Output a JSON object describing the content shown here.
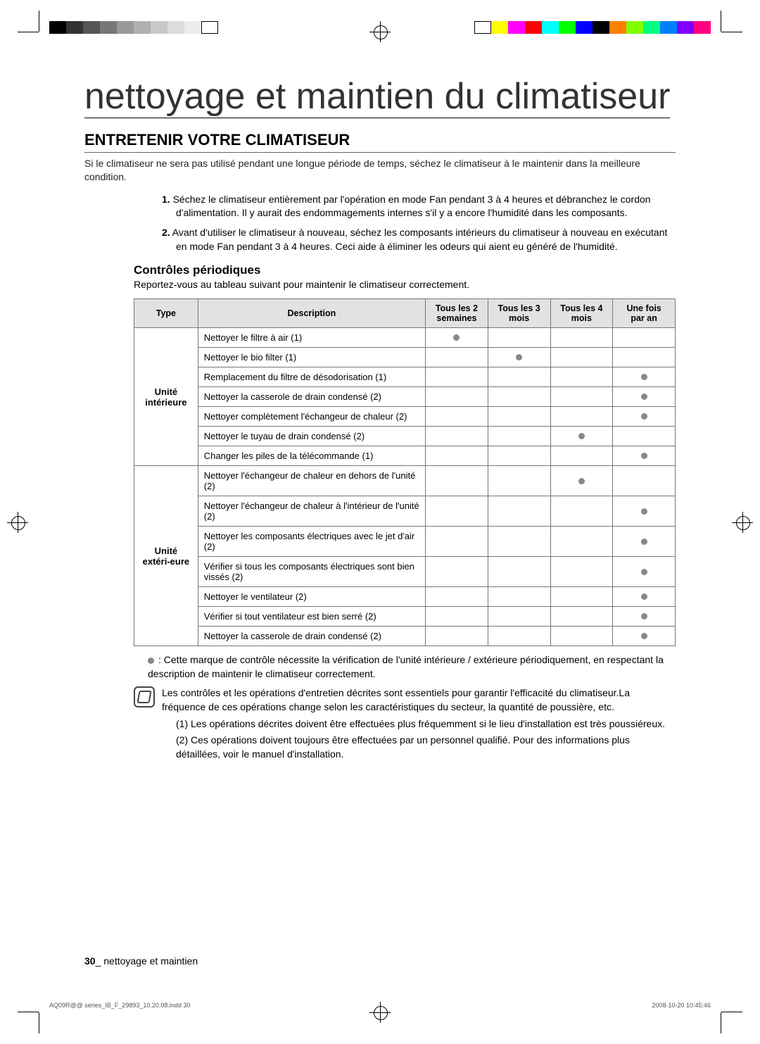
{
  "printmarks": {
    "gray_bar": [
      "#000000",
      "#333333",
      "#555555",
      "#777777",
      "#999999",
      "#b0b0b0",
      "#c8c8c8",
      "#dcdcdc",
      "#ececec",
      "#ffffff"
    ],
    "color_bar": [
      "#ffffff",
      "#ffff00",
      "#ff00ff",
      "#ff0000",
      "#00ffff",
      "#00ff00",
      "#0000ff",
      "#000000",
      "#ff8000",
      "#80ff00",
      "#00ff80",
      "#0080ff",
      "#8000ff",
      "#ff0080"
    ]
  },
  "title": "nettoyage et maintien du climatiseur",
  "h2": "ENTRETENIR VOTRE CLIMATISEUR",
  "intro": "Si le climatiseur ne sera pas utilisé pendant une longue période de temps, séchez le climatiseur à le maintenir dans la meilleure condition.",
  "steps": [
    "Séchez le climatiseur entièrement par l'opération en mode Fan pendant 3 à 4 heures et débranchez le cordon d'alimentation. Il y aurait des endommagements internes s'il y a encore l'humidité dans les composants.",
    "Avant d'utiliser le climatiseur à nouveau, séchez les composants intérieurs du climatiseur à nouveau en exécutant en mode Fan pendant 3 à 4 heures. Ceci aide à éliminer les odeurs qui aient eu généré de l'humidité."
  ],
  "h3": "Contrôles périodiques",
  "sub": "Reportez-vous au tableau suivant pour maintenir le climatiseur correctement.",
  "table": {
    "header_bg": "#e2e2e2",
    "border_color": "#777777",
    "dot_color": "#888888",
    "columns": [
      "Type",
      "Description",
      "Tous les 2 semaines",
      "Tous les 3 mois",
      "Tous les 4 mois",
      "Une fois par an"
    ],
    "groups": [
      {
        "type": "Unité intérieure",
        "rows": [
          {
            "desc": "Nettoyer le filtre à air (1)",
            "marks": [
              true,
              false,
              false,
              false
            ]
          },
          {
            "desc": "Nettoyer le bio filter (1)",
            "marks": [
              false,
              true,
              false,
              false
            ]
          },
          {
            "desc": "Remplacement du filtre de désodorisation (1)",
            "marks": [
              false,
              false,
              false,
              true
            ]
          },
          {
            "desc": "Nettoyer la casserole de drain condensé (2)",
            "marks": [
              false,
              false,
              false,
              true
            ]
          },
          {
            "desc": "Nettoyer complètement l'échangeur de chaleur (2)",
            "marks": [
              false,
              false,
              false,
              true
            ]
          },
          {
            "desc": "Nettoyer le tuyau de drain condensé (2)",
            "marks": [
              false,
              false,
              true,
              false
            ]
          },
          {
            "desc": "Changer les piles de la télécommande (1)",
            "marks": [
              false,
              false,
              false,
              true
            ]
          }
        ]
      },
      {
        "type": "Unité extéri-eure",
        "rows": [
          {
            "desc": "Nettoyer l'échangeur de chaleur en dehors de l'unité (2)",
            "marks": [
              false,
              false,
              true,
              false
            ]
          },
          {
            "desc": "Nettoyer l'échangeur de chaleur à l'intérieur de l'unité (2)",
            "marks": [
              false,
              false,
              false,
              true
            ]
          },
          {
            "desc": "Nettoyer les composants électriques avec le jet d'air (2)",
            "marks": [
              false,
              false,
              false,
              true
            ]
          },
          {
            "desc": "Vérifier si tous les composants électriques sont bien vissés (2)",
            "marks": [
              false,
              false,
              false,
              true
            ]
          },
          {
            "desc": "Nettoyer le ventilateur (2)",
            "marks": [
              false,
              false,
              false,
              true
            ]
          },
          {
            "desc": "Vérifier si tout ventilateur est bien serré (2)",
            "marks": [
              false,
              false,
              false,
              true
            ]
          },
          {
            "desc": "Nettoyer la casserole de drain condensé (2)",
            "marks": [
              false,
              false,
              false,
              true
            ]
          }
        ]
      }
    ]
  },
  "legend": ": Cette marque de contrôle nécessite la vérification de l'unité intérieure / extérieure périodiquement, en respectant la description de maintenir le climatiseur correctement.",
  "note": {
    "main": "Les contrôles et les opérations d'entretien décrites sont essentiels pour garantir l'efficacité du climatiseur.La fréquence de ces opérations change selon les caractéristiques du secteur, la quantité de poussière, etc.",
    "n1": "(1) Les opérations décrites doivent être effectuées plus fréquemment si le lieu d'installation est très poussiéreux.",
    "n2": "(2) Ces opérations doivent toujours être effectuées par un personnel qualifié. Pour des informations plus détaillées, voir le manuel d'installation."
  },
  "footer": {
    "page": "30",
    "label": "_ nettoyage et maintien"
  },
  "print_footer": {
    "left": "AQ09R@@ series_IB_F_29893_10.20.08.indd   30",
    "right": "2008-10-20   10:45:46"
  }
}
